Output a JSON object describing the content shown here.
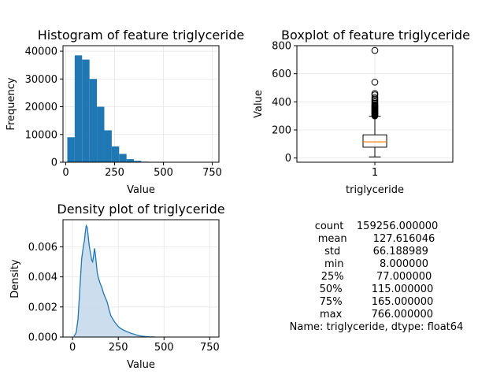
{
  "chart_data": [
    {
      "type": "bar",
      "title": "Histogram of feature triglyceride",
      "xlabel": "Value",
      "ylabel": "Frequency",
      "xlim": [
        -14,
        784
      ],
      "ylim": [
        0,
        42000
      ],
      "xticks": [
        0,
        250,
        500,
        750
      ],
      "yticks": [
        0,
        10000,
        20000,
        30000,
        40000
      ],
      "grid": true,
      "color": "#1f77b4",
      "bin_edges": [
        8.0,
        45.9,
        83.8,
        121.7,
        159.6,
        197.5,
        235.4,
        273.3,
        311.2,
        349.1,
        387.0,
        424.9,
        462.8,
        500.7,
        538.6,
        576.5,
        614.4,
        652.3,
        690.2,
        728.1,
        766.0
      ],
      "values": [
        9000,
        38500,
        37000,
        30000,
        20000,
        11500,
        5700,
        3000,
        1100,
        500,
        200,
        80,
        40,
        20,
        10,
        5,
        3,
        2,
        1,
        1
      ]
    },
    {
      "type": "boxplot",
      "title": "Boxplot of feature triglyceride",
      "xlabel": "triglyceride",
      "ylabel": "Value",
      "categories": [
        "1"
      ],
      "ylim": [
        -30,
        800
      ],
      "yticks": [
        0,
        200,
        400,
        600,
        800
      ],
      "grid": true,
      "box": {
        "whisker_low": 8,
        "q1": 77,
        "median": 115,
        "q3": 165,
        "whisker_high": 297
      },
      "box_color": "#000000",
      "median_color": "#ff7f0e",
      "outliers": [
        300,
        305,
        310,
        315,
        320,
        325,
        330,
        335,
        340,
        345,
        350,
        355,
        360,
        365,
        370,
        375,
        380,
        390,
        400,
        410,
        420,
        430,
        450,
        460,
        540,
        766
      ]
    },
    {
      "type": "area",
      "title": "Density plot of triglyceride",
      "xlabel": "Value",
      "ylabel": "Density",
      "xlim": [
        -52,
        800
      ],
      "ylim": [
        0,
        0.0078
      ],
      "xticks": [
        0,
        250,
        500,
        750
      ],
      "yticks": [
        0,
        0.002,
        0.004,
        0.006
      ],
      "ytick_labels": [
        "0.000",
        "0.002",
        "0.004",
        "0.006"
      ],
      "grid": true,
      "line_color": "#1f77b4",
      "fill_color": "#c6d9eb",
      "x": [
        8,
        20,
        30,
        40,
        50,
        60,
        65,
        70,
        75,
        80,
        85,
        90,
        95,
        100,
        105,
        110,
        115,
        120,
        125,
        130,
        135,
        140,
        150,
        160,
        170,
        180,
        190,
        200,
        210,
        220,
        230,
        240,
        250,
        260,
        270,
        280,
        300,
        320,
        340,
        360,
        380,
        400,
        420,
        450
      ],
      "y": [
        5e-05,
        0.0003,
        0.0012,
        0.0032,
        0.0052,
        0.0061,
        0.0064,
        0.007,
        0.0074,
        0.0073,
        0.0068,
        0.0062,
        0.0058,
        0.0055,
        0.0051,
        0.005,
        0.0054,
        0.0059,
        0.0055,
        0.0049,
        0.0043,
        0.004,
        0.0036,
        0.0033,
        0.0029,
        0.0026,
        0.0023,
        0.0018,
        0.0014,
        0.0012,
        0.001,
        0.00085,
        0.0007,
        0.0006,
        0.00052,
        0.00045,
        0.00035,
        0.00025,
        0.00018,
        0.0001,
        6e-05,
        3e-05,
        1e-05,
        0.0
      ]
    },
    {
      "type": "table",
      "rows": [
        {
          "label": "count",
          "value": "159256.000000"
        },
        {
          "label": "mean",
          "value": "127.616046"
        },
        {
          "label": "std",
          "value": "66.188989"
        },
        {
          "label": "min",
          "value": "8.000000"
        },
        {
          "label": "25%",
          "value": "77.000000"
        },
        {
          "label": "50%",
          "value": "115.000000"
        },
        {
          "label": "75%",
          "value": "165.000000"
        },
        {
          "label": "max",
          "value": "766.000000"
        }
      ],
      "footer": "Name: triglyceride, dtype: float64"
    }
  ]
}
